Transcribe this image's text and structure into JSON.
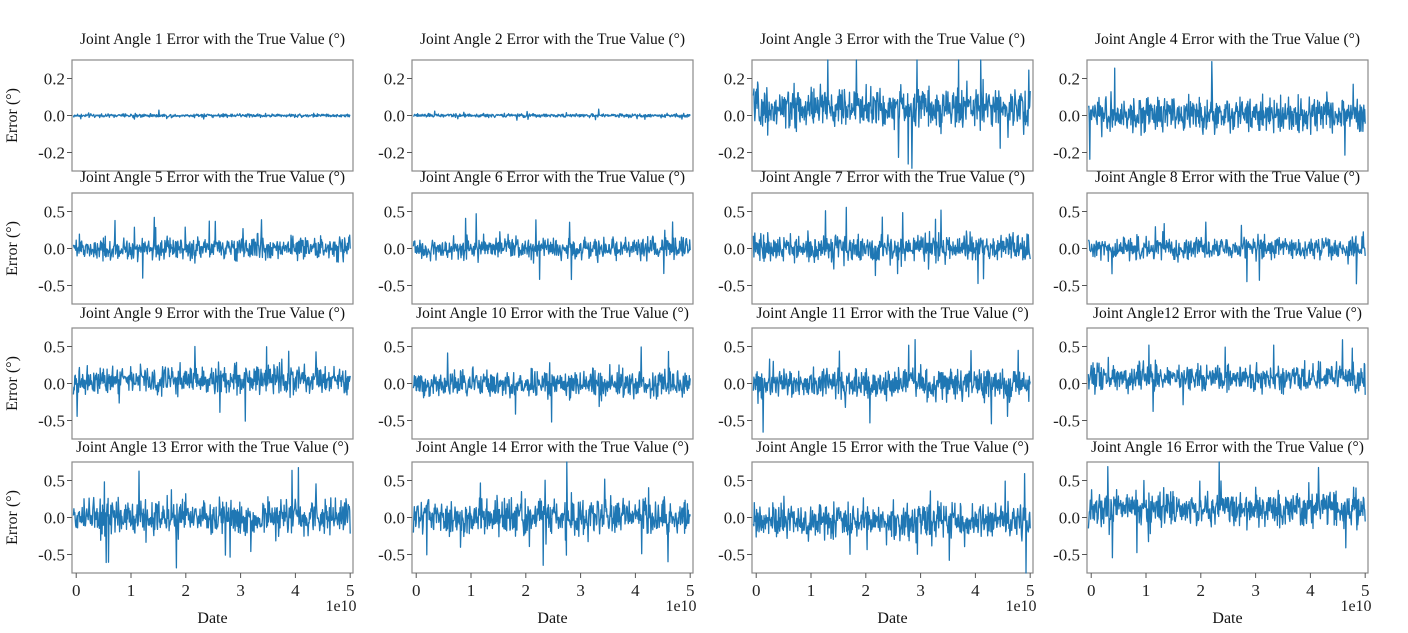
{
  "figure": {
    "line_color": "#1f77b4",
    "x_offset_label": "1e10",
    "x_axis_label": "Date",
    "y_axis_label": "Error (°)"
  },
  "chart_data": [
    {
      "type": "line",
      "title": "Joint Angle 1 Error with the True Value (°)",
      "xlabel": "",
      "ylabel": "Error (°)",
      "xlim": [
        0,
        5
      ],
      "ylim": [
        -0.3,
        0.3
      ],
      "yticks": [
        0.2,
        0.0,
        -0.2
      ],
      "ytick_labels": [
        "0.2",
        "0.0",
        "-0.2"
      ],
      "xticks": [
        0,
        1,
        2,
        3,
        4,
        5
      ],
      "xtick_labels": [
        "0",
        "1",
        "2",
        "3",
        "4",
        "5"
      ],
      "x_multiplier": "1e10",
      "noise_amplitude": 0.01,
      "mean": 0.0,
      "grid": false,
      "series": [
        {
          "values": []
        }
      ]
    },
    {
      "type": "line",
      "title": "Joint Angle 2 Error with the True Value (°)",
      "xlabel": "",
      "ylabel": "",
      "xlim": [
        0,
        5
      ],
      "ylim": [
        -0.3,
        0.3
      ],
      "yticks": [
        0.2,
        0.0,
        -0.2
      ],
      "ytick_labels": [
        "0.2",
        "0.0",
        "-0.2"
      ],
      "xticks": [
        0,
        1,
        2,
        3,
        4,
        5
      ],
      "xtick_labels": [
        "0",
        "1",
        "2",
        "3",
        "4",
        "5"
      ],
      "x_multiplier": "1e10",
      "noise_amplitude": 0.01,
      "mean": 0.0,
      "grid": false,
      "series": [
        {
          "values": []
        }
      ]
    },
    {
      "type": "line",
      "title": "Joint Angle 3 Error with the True Value (°)",
      "xlabel": "",
      "ylabel": "",
      "xlim": [
        0,
        5
      ],
      "ylim": [
        -0.3,
        0.3
      ],
      "yticks": [
        0.2,
        0.0,
        -0.2
      ],
      "ytick_labels": [
        "0.2",
        "0.0",
        "-0.2"
      ],
      "xticks": [
        0,
        1,
        2,
        3,
        4,
        5
      ],
      "xtick_labels": [
        "0",
        "1",
        "2",
        "3",
        "4",
        "5"
      ],
      "x_multiplier": "1e10",
      "noise_amplitude": 0.12,
      "mean": 0.04,
      "grid": false,
      "series": [
        {
          "values": []
        }
      ]
    },
    {
      "type": "line",
      "title": "Joint Angle 4 Error with the True Value (°)",
      "xlabel": "",
      "ylabel": "",
      "xlim": [
        0,
        5
      ],
      "ylim": [
        -0.3,
        0.3
      ],
      "yticks": [
        0.2,
        0.0,
        -0.2
      ],
      "ytick_labels": [
        "0.2",
        "0.0",
        "-0.2"
      ],
      "xticks": [
        0,
        1,
        2,
        3,
        4,
        5
      ],
      "xtick_labels": [
        "0",
        "1",
        "2",
        "3",
        "4",
        "5"
      ],
      "x_multiplier": "1e10",
      "noise_amplitude": 0.1,
      "mean": 0.0,
      "grid": false,
      "series": [
        {
          "values": []
        }
      ]
    },
    {
      "type": "line",
      "title": "Joint Angle 5 Error with the True Value (°)",
      "xlabel": "",
      "ylabel": "Error (°)",
      "xlim": [
        0,
        5
      ],
      "ylim": [
        -0.75,
        0.75
      ],
      "yticks": [
        0.5,
        0.0,
        -0.5
      ],
      "ytick_labels": [
        "0.5",
        "0.0",
        "-0.5"
      ],
      "xticks": [
        0,
        1,
        2,
        3,
        4,
        5
      ],
      "xtick_labels": [
        "0",
        "1",
        "2",
        "3",
        "4",
        "5"
      ],
      "x_multiplier": "1e10",
      "noise_amplitude": 0.16,
      "mean": 0.0,
      "grid": false,
      "series": [
        {
          "values": []
        }
      ]
    },
    {
      "type": "line",
      "title": "Joint Angle 6 Error with the True Value (°)",
      "xlabel": "",
      "ylabel": "",
      "xlim": [
        0,
        5
      ],
      "ylim": [
        -0.75,
        0.75
      ],
      "yticks": [
        0.5,
        0.0,
        -0.5
      ],
      "ytick_labels": [
        "0.5",
        "0.0",
        "-0.5"
      ],
      "xticks": [
        0,
        1,
        2,
        3,
        4,
        5
      ],
      "xtick_labels": [
        "0",
        "1",
        "2",
        "3",
        "4",
        "5"
      ],
      "x_multiplier": "1e10",
      "noise_amplitude": 0.16,
      "mean": 0.0,
      "grid": false,
      "series": [
        {
          "values": []
        }
      ]
    },
    {
      "type": "line",
      "title": "Joint Angle 7 Error with the True Value (°)",
      "xlabel": "",
      "ylabel": "",
      "xlim": [
        0,
        5
      ],
      "ylim": [
        -0.75,
        0.75
      ],
      "yticks": [
        0.5,
        0.0,
        -0.5
      ],
      "ytick_labels": [
        "0.5",
        "0.0",
        "-0.5"
      ],
      "xticks": [
        0,
        1,
        2,
        3,
        4,
        5
      ],
      "xtick_labels": [
        "0",
        "1",
        "2",
        "3",
        "4",
        "5"
      ],
      "x_multiplier": "1e10",
      "noise_amplitude": 0.2,
      "mean": 0.0,
      "grid": false,
      "series": [
        {
          "values": []
        }
      ]
    },
    {
      "type": "line",
      "title": "Joint Angle 8 Error with the True Value (°)",
      "xlabel": "",
      "ylabel": "",
      "xlim": [
        0,
        5
      ],
      "ylim": [
        -0.75,
        0.75
      ],
      "yticks": [
        0.5,
        0.0,
        -0.5
      ],
      "ytick_labels": [
        "0.5",
        "0.0",
        "-0.5"
      ],
      "xticks": [
        0,
        1,
        2,
        3,
        4,
        5
      ],
      "xtick_labels": [
        "0",
        "1",
        "2",
        "3",
        "4",
        "5"
      ],
      "x_multiplier": "1e10",
      "noise_amplitude": 0.16,
      "mean": 0.0,
      "grid": false,
      "series": [
        {
          "values": []
        }
      ]
    },
    {
      "type": "line",
      "title": "Joint Angle 9 Error with the True Value (°)",
      "xlabel": "",
      "ylabel": "Error (°)",
      "xlim": [
        0,
        5
      ],
      "ylim": [
        -0.75,
        0.75
      ],
      "yticks": [
        0.5,
        0.0,
        -0.5
      ],
      "ytick_labels": [
        "0.5",
        "0.0",
        "-0.5"
      ],
      "xticks": [
        0,
        1,
        2,
        3,
        4,
        5
      ],
      "xtick_labels": [
        "0",
        "1",
        "2",
        "3",
        "4",
        "5"
      ],
      "x_multiplier": "1e10",
      "noise_amplitude": 0.2,
      "mean": 0.05,
      "grid": false,
      "series": [
        {
          "values": []
        }
      ]
    },
    {
      "type": "line",
      "title": "Joint Angle 10 Error with the True Value (°)",
      "xlabel": "",
      "ylabel": "",
      "xlim": [
        0,
        5
      ],
      "ylim": [
        -0.75,
        0.75
      ],
      "yticks": [
        0.5,
        0.0,
        -0.5
      ],
      "ytick_labels": [
        "0.5",
        "0.0",
        "-0.5"
      ],
      "xticks": [
        0,
        1,
        2,
        3,
        4,
        5
      ],
      "xtick_labels": [
        "0",
        "1",
        "2",
        "3",
        "4",
        "5"
      ],
      "x_multiplier": "1e10",
      "noise_amplitude": 0.2,
      "mean": 0.0,
      "grid": false,
      "series": [
        {
          "values": []
        }
      ]
    },
    {
      "type": "line",
      "title": "Joint Angle 11 Error with the True Value (°)",
      "xlabel": "",
      "ylabel": "",
      "xlim": [
        0,
        5
      ],
      "ylim": [
        -0.75,
        0.75
      ],
      "yticks": [
        0.5,
        0.0,
        -0.5
      ],
      "ytick_labels": [
        "0.5",
        "0.0",
        "-0.5"
      ],
      "xticks": [
        0,
        1,
        2,
        3,
        4,
        5
      ],
      "xtick_labels": [
        "0",
        "1",
        "2",
        "3",
        "4",
        "5"
      ],
      "x_multiplier": "1e10",
      "noise_amplitude": 0.22,
      "mean": 0.0,
      "grid": false,
      "series": [
        {
          "values": []
        }
      ]
    },
    {
      "type": "line",
      "title": "Joint Angle12 Error with the True Value (°)",
      "xlabel": "",
      "ylabel": "",
      "xlim": [
        0,
        5
      ],
      "ylim": [
        -0.75,
        0.75
      ],
      "yticks": [
        0.5,
        0.0,
        -0.5
      ],
      "ytick_labels": [
        "0.5",
        "0.0",
        "-0.5"
      ],
      "xticks": [
        0,
        1,
        2,
        3,
        4,
        5
      ],
      "xtick_labels": [
        "0",
        "1",
        "2",
        "3",
        "4",
        "5"
      ],
      "x_multiplier": "1e10",
      "noise_amplitude": 0.2,
      "mean": 0.08,
      "grid": false,
      "series": [
        {
          "values": []
        }
      ]
    },
    {
      "type": "line",
      "title": "Joint Angle 13 Error with the True Value (°)",
      "xlabel": "Date",
      "ylabel": "Error (°)",
      "xlim": [
        0,
        5
      ],
      "ylim": [
        -0.75,
        0.75
      ],
      "yticks": [
        0.5,
        0.0,
        -0.5
      ],
      "ytick_labels": [
        "0.5",
        "0.0",
        "-0.5"
      ],
      "xticks": [
        0,
        1,
        2,
        3,
        4,
        5
      ],
      "xtick_labels": [
        "0",
        "1",
        "2",
        "3",
        "4",
        "5"
      ],
      "x_multiplier": "1e10",
      "noise_amplitude": 0.25,
      "mean": 0.0,
      "grid": false,
      "series": [
        {
          "values": []
        }
      ]
    },
    {
      "type": "line",
      "title": "Joint Angle 14 Error with the True Value (°)",
      "xlabel": "Date",
      "ylabel": "",
      "xlim": [
        0,
        5
      ],
      "ylim": [
        -0.75,
        0.75
      ],
      "yticks": [
        0.5,
        0.0,
        -0.5
      ],
      "ytick_labels": [
        "0.5",
        "0.0",
        "-0.5"
      ],
      "xticks": [
        0,
        1,
        2,
        3,
        4,
        5
      ],
      "xtick_labels": [
        "0",
        "1",
        "2",
        "3",
        "4",
        "5"
      ],
      "x_multiplier": "1e10",
      "noise_amplitude": 0.25,
      "mean": 0.0,
      "grid": false,
      "series": [
        {
          "values": []
        }
      ]
    },
    {
      "type": "line",
      "title": "Joint Angle 15 Error with the True Value (°)",
      "xlabel": "Date",
      "ylabel": "",
      "xlim": [
        0,
        5
      ],
      "ylim": [
        -0.75,
        0.75
      ],
      "yticks": [
        0.5,
        0.0,
        -0.5
      ],
      "ytick_labels": [
        "0.5",
        "0.0",
        "-0.5"
      ],
      "xticks": [
        0,
        1,
        2,
        3,
        4,
        5
      ],
      "xtick_labels": [
        "0",
        "1",
        "2",
        "3",
        "4",
        "5"
      ],
      "x_multiplier": "1e10",
      "noise_amplitude": 0.25,
      "mean": -0.05,
      "grid": false,
      "series": [
        {
          "values": []
        }
      ]
    },
    {
      "type": "line",
      "title": "Joint Angle 16 Error with the True Value (°)",
      "xlabel": "Date",
      "ylabel": "",
      "xlim": [
        0,
        5
      ],
      "ylim": [
        -0.75,
        0.75
      ],
      "yticks": [
        0.5,
        0.0,
        -0.5
      ],
      "ytick_labels": [
        "0.5",
        "0.0",
        "-0.5"
      ],
      "xticks": [
        0,
        1,
        2,
        3,
        4,
        5
      ],
      "xtick_labels": [
        "0",
        "1",
        "2",
        "3",
        "4",
        "5"
      ],
      "x_multiplier": "1e10",
      "noise_amplitude": 0.25,
      "mean": 0.12,
      "grid": false,
      "series": [
        {
          "values": []
        }
      ]
    }
  ]
}
